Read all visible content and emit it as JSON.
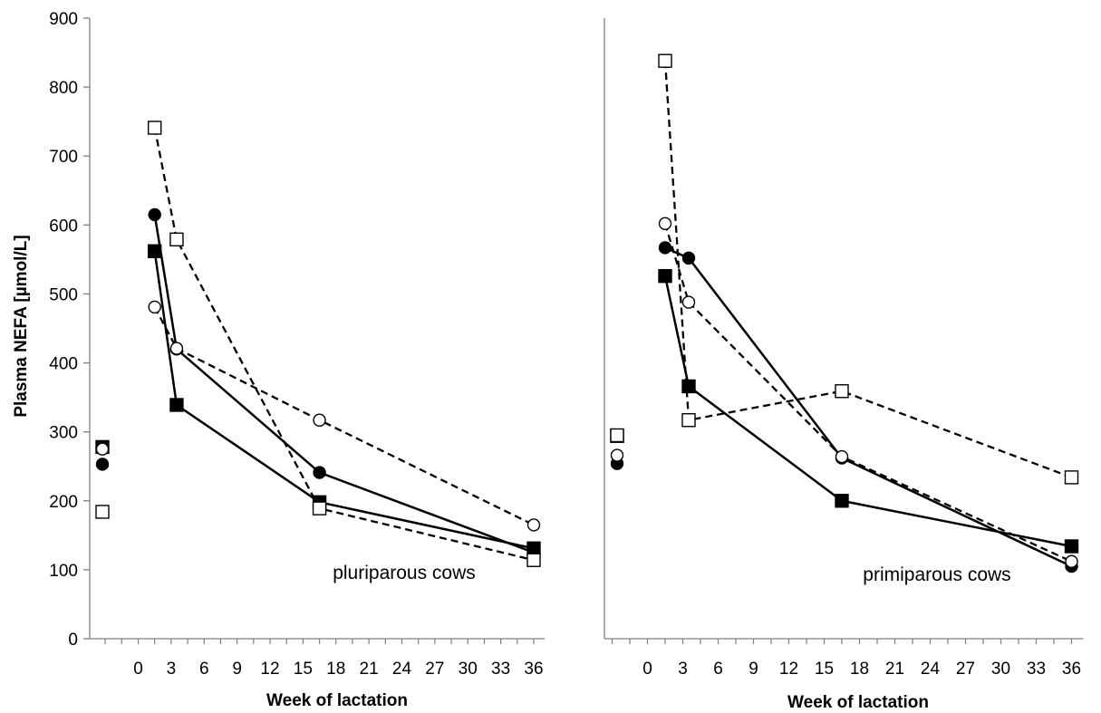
{
  "chart_data": [
    {
      "type": "line",
      "panel_label": "pluriparous cows",
      "ylabel": "Plasma NEFA [µmol/L]",
      "xlabel": "Week of lactation",
      "ylim": [
        0,
        900
      ],
      "yticks": [
        0,
        100,
        200,
        300,
        400,
        500,
        600,
        700,
        800,
        900
      ],
      "xticks": [
        0,
        3,
        6,
        9,
        12,
        15,
        18,
        21,
        24,
        27,
        30,
        33,
        36
      ],
      "xlim": [
        -3.5,
        37
      ],
      "grid": false,
      "series": [
        {
          "marker": "filled-circle",
          "line": "solid",
          "prepartum": 253,
          "x": [
            1.5,
            3.5,
            16.5,
            36
          ],
          "y": [
            615,
            420,
            241,
            125
          ]
        },
        {
          "marker": "filled-square",
          "line": "solid",
          "prepartum": 278,
          "x": [
            1.5,
            3.5,
            16.5,
            36
          ],
          "y": [
            562,
            339,
            198,
            131
          ]
        },
        {
          "marker": "open-circle",
          "line": "dashed",
          "prepartum": 275,
          "x": [
            1.5,
            3.5,
            16.5,
            36
          ],
          "y": [
            481,
            421,
            317,
            165
          ]
        },
        {
          "marker": "open-square",
          "line": "dashed",
          "prepartum": 184,
          "x": [
            1.5,
            3.5,
            16.5,
            36
          ],
          "y": [
            741,
            579,
            189,
            114
          ]
        }
      ]
    },
    {
      "type": "line",
      "panel_label": "primiparous cows",
      "ylabel": "",
      "xlabel": "Week of lactation",
      "ylim": [
        0,
        900
      ],
      "xticks": [
        0,
        3,
        6,
        9,
        12,
        15,
        18,
        21,
        24,
        27,
        30,
        33,
        36
      ],
      "xlim": [
        -3.5,
        37
      ],
      "grid": false,
      "series": [
        {
          "marker": "filled-circle",
          "line": "solid",
          "prepartum": 254,
          "x": [
            1.5,
            3.5,
            16.5,
            36
          ],
          "y": [
            567,
            552,
            262,
            105
          ]
        },
        {
          "marker": "filled-square",
          "line": "solid",
          "prepartum": 294,
          "x": [
            1.5,
            3.5,
            16.5,
            36
          ],
          "y": [
            526,
            366,
            200,
            134
          ]
        },
        {
          "marker": "open-circle",
          "line": "dashed",
          "prepartum": 266,
          "x": [
            1.5,
            3.5,
            16.5,
            36
          ],
          "y": [
            602,
            488,
            264,
            112
          ]
        },
        {
          "marker": "open-square",
          "line": "dashed",
          "prepartum": 295,
          "x": [
            1.5,
            3.5,
            16.5,
            36
          ],
          "y": [
            838,
            317,
            359,
            234
          ]
        }
      ]
    }
  ]
}
